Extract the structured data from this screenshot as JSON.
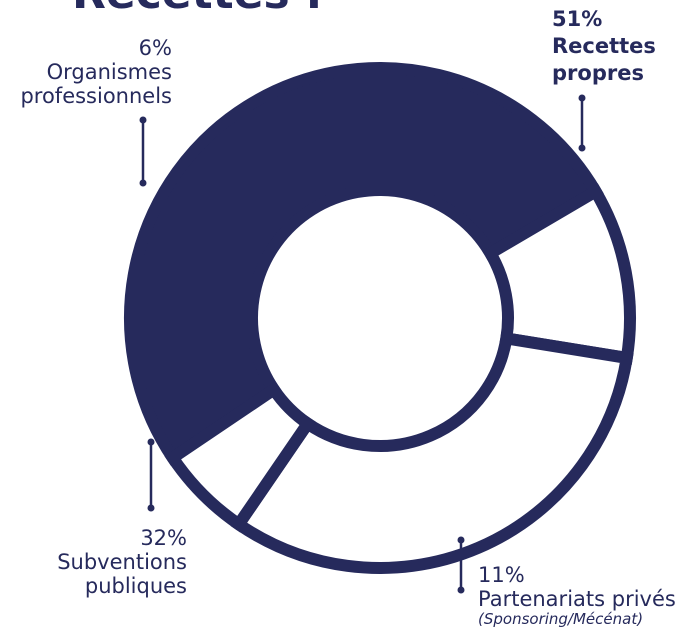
{
  "colors": {
    "navy": "#262a5c",
    "white": "#ffffff"
  },
  "chart_data": {
    "type": "pie",
    "title": "Recettes :",
    "series": [
      {
        "slices": [
          {
            "label": "Recettes propres",
            "value": 51,
            "value_label": "51%",
            "note": "",
            "fill": "#262a5c"
          },
          {
            "label": "Partenariats privés",
            "value": 11,
            "value_label": "11%",
            "note": "(Sponsoring/Mécénat)",
            "fill": "#ffffff"
          },
          {
            "label": "Subventions publiques",
            "value": 32,
            "value_label": "32%",
            "note": "",
            "fill": "#ffffff"
          },
          {
            "label": "Organismes professionnels",
            "value": 6,
            "value_label": "6%",
            "note": "",
            "fill": "#ffffff"
          }
        ]
      }
    ]
  },
  "labels": {
    "recettes_propres": {
      "value": "51%",
      "line1": "Recettes",
      "line2": "propres"
    },
    "partenariats": {
      "value": "11%",
      "line1": "Partenariats privés",
      "note": "(Sponsoring/Mécénat)"
    },
    "subventions": {
      "value": "32%",
      "line1": "Subventions",
      "line2": "publiques"
    },
    "organismes": {
      "value": "6%",
      "line1": "Organismes",
      "line2": "professionnels"
    }
  }
}
